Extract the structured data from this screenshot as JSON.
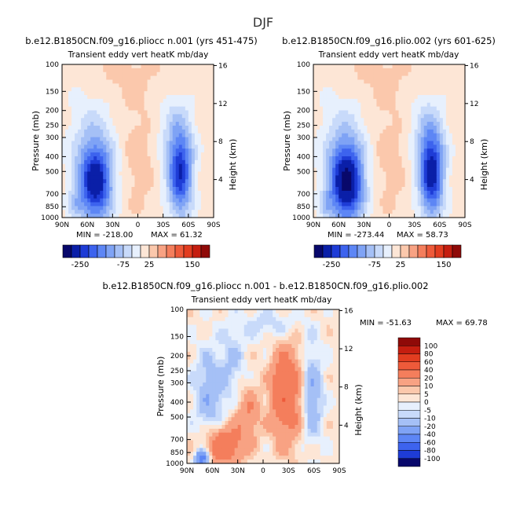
{
  "figure_title": "DJF",
  "chart_data": [
    {
      "type": "heatmap",
      "title": "b.e12.B1850CN.f09_g16.pliocc n.001 (yrs 451-475)",
      "subtitle": "Transient eddy vert heatK mb/day",
      "xlabel": "",
      "ylabel": "Pressure (mb)",
      "y2label": "Height (km)",
      "x_ticks": [
        "90N",
        "60N",
        "30N",
        "0",
        "30S",
        "60S",
        "90S"
      ],
      "y_ticks": [
        "100",
        "150",
        "200",
        "250",
        "300",
        "400",
        "500",
        "700",
        "850",
        "1000"
      ],
      "y2_ticks": [
        "16",
        "12",
        "8",
        "4"
      ],
      "min_label": "MIN = -218.00",
      "max_label": "MAX = 61.32",
      "min": -218.0,
      "max": 61.32,
      "log_pressure_axis": true
    },
    {
      "type": "heatmap",
      "title": "b.e12.B1850CN.f09_g16.plio.002 (yrs 601-625)",
      "subtitle": "Transient eddy vert heatK mb/day",
      "xlabel": "",
      "ylabel": "Pressure (mb)",
      "y2label": "Height (km)",
      "x_ticks": [
        "90N",
        "60N",
        "30N",
        "0",
        "30S",
        "60S",
        "90S"
      ],
      "y_ticks": [
        "100",
        "150",
        "200",
        "250",
        "300",
        "400",
        "500",
        "700",
        "850",
        "1000"
      ],
      "y2_ticks": [
        "16",
        "12",
        "8",
        "4"
      ],
      "min_label": "MIN = -273.44",
      "max_label": "MAX = 58.73",
      "min": -273.44,
      "max": 58.73,
      "log_pressure_axis": true
    },
    {
      "type": "heatmap",
      "title": "b.e12.B1850CN.f09_g16.pliocc n.001 - b.e12.B1850CN.f09_g16.plio.002",
      "subtitle": "Transient eddy vert heatK mb/day",
      "xlabel": "",
      "ylabel": "Pressure (mb)",
      "y2label": "Height (km)",
      "x_ticks": [
        "90N",
        "60N",
        "30N",
        "0",
        "30S",
        "60S",
        "90S"
      ],
      "y_ticks": [
        "100",
        "150",
        "200",
        "250",
        "300",
        "400",
        "500",
        "700",
        "850",
        "1000"
      ],
      "y2_ticks": [
        "16",
        "12",
        "8",
        "4"
      ],
      "min_label": "MIN = -51.63",
      "max_label": "MAX = 69.78",
      "min": -51.63,
      "max": 69.78,
      "log_pressure_axis": true
    }
  ],
  "colorbar_top": {
    "orientation": "horizontal",
    "tick_labels": [
      "-250",
      "-75",
      "25",
      "150"
    ],
    "colors": [
      "#08086b",
      "#0a1fa8",
      "#1e3cd6",
      "#3d63ee",
      "#5d86f5",
      "#7fa3f5",
      "#a5c0f6",
      "#c8dafa",
      "#e7f0fd",
      "#fde6d6",
      "#fbc8ac",
      "#f8a283",
      "#f47e5c",
      "#ee5a3a",
      "#e23d20",
      "#c51e10",
      "#8f0a08"
    ]
  },
  "colorbar_diff": {
    "orientation": "vertical",
    "levels": [
      "100",
      "80",
      "60",
      "40",
      "20",
      "10",
      "5",
      "0",
      "-5",
      "-10",
      "-20",
      "-40",
      "-60",
      "-80",
      "-100"
    ],
    "colors": [
      "#8f0a08",
      "#c51e10",
      "#e23d20",
      "#ee5a3a",
      "#f47e5c",
      "#f8a283",
      "#fbc8ac",
      "#fde6d6",
      "#e7f0fd",
      "#c8dafa",
      "#a5c0f6",
      "#7fa3f5",
      "#5d86f5",
      "#3d63ee",
      "#1e3cd6",
      "#08086b"
    ]
  }
}
